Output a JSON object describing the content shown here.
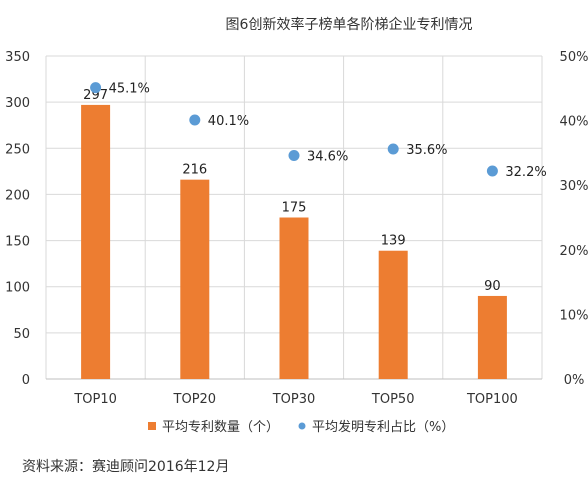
{
  "chart_data": {
    "type": "bar",
    "title": "图6创新效率子榜单各阶梯企业专利情况",
    "categories": [
      "TOP10",
      "TOP20",
      "TOP30",
      "TOP50",
      "TOP100"
    ],
    "series": [
      {
        "name": "平均专利数量（个）",
        "type": "bar",
        "axis": "left",
        "color": "#ED7D31",
        "values": [
          297,
          216,
          175,
          139,
          90
        ],
        "labels": [
          "297",
          "216",
          "175",
          "139",
          "90"
        ]
      },
      {
        "name": "平均发明专利占比（%）",
        "type": "scatter",
        "axis": "right",
        "color": "#5B9BD5",
        "values": [
          45.1,
          40.1,
          34.6,
          35.6,
          32.2
        ],
        "labels": [
          "45.1%",
          "40.1%",
          "34.6%",
          "35.6%",
          "32.2%"
        ]
      }
    ],
    "ylim_left": [
      0,
      350
    ],
    "yticks_left": [
      "0",
      "50",
      "100",
      "150",
      "200",
      "250",
      "300",
      "350"
    ],
    "ylim_right": [
      0,
      50
    ],
    "yticks_right": [
      "0%",
      "10%",
      "20%",
      "30%",
      "40%",
      "50%"
    ],
    "grid": true,
    "legend_position": "bottom"
  },
  "source": "资料来源：赛迪顾问2016年12月"
}
